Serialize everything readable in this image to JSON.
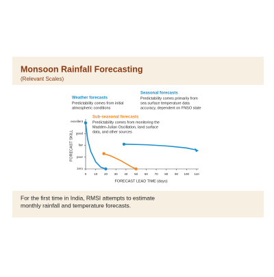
{
  "chart_data": {
    "type": "line",
    "title": "Monsoon Rainfall Forecasting",
    "subtitle": "(Relevant Scales)",
    "xlabel": "FORECAST LEAD TIME (days)",
    "ylabel": "FORECAST SKILL",
    "xlim": [
      0,
      110
    ],
    "xticks": [
      0,
      10,
      20,
      30,
      40,
      50,
      60,
      70,
      80,
      90,
      100,
      110
    ],
    "ylim": [
      0,
      4
    ],
    "yticks": [
      {
        "value": 0,
        "label": "zero"
      },
      {
        "value": 1,
        "label": "poor"
      },
      {
        "value": 2,
        "label": "fair"
      },
      {
        "value": 3,
        "label": "good"
      },
      {
        "value": 4,
        "label": "excellent"
      }
    ],
    "series": [
      {
        "name": "Weather forecasts",
        "color": "#1a8fd0",
        "description": [
          "Predictability comes from initial",
          "atmospheric conditions"
        ],
        "x": [
          0,
          2,
          5,
          10,
          15,
          20
        ],
        "values": [
          3.9,
          2.5,
          1.5,
          0.6,
          0.15,
          0
        ]
      },
      {
        "name": "Sub-seasonal forecasts",
        "color": "#f08a24",
        "description": [
          "Predictability comes from monitoring the",
          "Madden-Julian Oscillation, land surface",
          "data, and other sources"
        ],
        "x": [
          18,
          25,
          35,
          45,
          50
        ],
        "values": [
          1.3,
          1.1,
          0.7,
          0.2,
          0
        ]
      },
      {
        "name": "Seasonal forecasts",
        "color": "#1a8fd0",
        "description": [
          "Predictability comes primarily from",
          "sea surface temperature data",
          "accuracy, dependent on FNSO state"
        ],
        "x": [
          38,
          60,
          80,
          100,
          110
        ],
        "values": [
          2.1,
          2.05,
          1.95,
          1.78,
          1.6
        ]
      }
    ],
    "footer": [
      "For the first time in India, RMSI attempts to estimate",
      "monthly rainfall and temperature forecasts."
    ]
  }
}
